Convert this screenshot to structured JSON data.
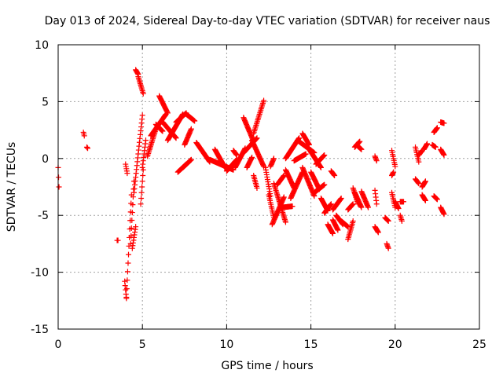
{
  "chart_data": {
    "type": "scatter",
    "title": "Day 013 of 2024, Sidereal Day-to-day VTEC variation (SDTVAR) for receiver naus",
    "xlabel": "GPS time / hours",
    "ylabel": "SDTVAR / TECUs",
    "xlim": [
      0,
      25
    ],
    "ylim": [
      -15,
      10
    ],
    "xticks": [
      "0",
      "5",
      "10",
      "15",
      "20",
      "25"
    ],
    "yticks": [
      "-15",
      "-10",
      "-5",
      "0",
      "5",
      "10"
    ],
    "grid": true,
    "marker": "+",
    "color": "#ff0000",
    "segments": [
      {
        "x0": 0.0,
        "x1": 0.05,
        "y": [
          -0.8,
          -2.5
        ]
      },
      {
        "x0": 1.5,
        "x1": 1.55,
        "y": [
          2.3,
          2.0
        ]
      },
      {
        "x0": 1.7,
        "x1": 1.75,
        "y": [
          1.0,
          0.9
        ]
      },
      {
        "x0": 3.5,
        "x1": 3.55,
        "y": [
          -7.2,
          -7.2
        ]
      },
      {
        "x0": 3.95,
        "x1": 4.05,
        "y": [
          -10.8,
          -12.3
        ]
      },
      {
        "x0": 4.0,
        "x1": 4.1,
        "y": [
          -0.5,
          -1.3
        ]
      },
      {
        "x0": 4.05,
        "x1": 4.35,
        "y": [
          -12.2,
          -3.2
        ]
      },
      {
        "x0": 4.3,
        "x1": 4.5,
        "y": [
          -7.5,
          -2.0
        ]
      },
      {
        "x0": 4.4,
        "x1": 4.6,
        "y": [
          -7.9,
          -6.0
        ]
      },
      {
        "x0": 4.5,
        "x1": 5.0,
        "y": [
          -3.0,
          3.8
        ]
      },
      {
        "x0": 4.6,
        "x1": 4.75,
        "y": [
          7.8,
          7.4
        ]
      },
      {
        "x0": 4.75,
        "x1": 5.05,
        "y": [
          7.2,
          5.7
        ]
      },
      {
        "x0": 4.9,
        "x1": 5.05,
        "y": [
          -4.0,
          -1.0
        ]
      },
      {
        "x0": 5.0,
        "x1": 5.2,
        "y": [
          -0.8,
          1.6
        ]
      },
      {
        "x0": 5.3,
        "x1": 5.8,
        "y": [
          0.2,
          2.6
        ]
      },
      {
        "x0": 5.5,
        "x1": 6.4,
        "y": [
          2.0,
          3.9
        ]
      },
      {
        "x0": 5.8,
        "x1": 6.2,
        "y": [
          3.0,
          2.4
        ]
      },
      {
        "x0": 6.0,
        "x1": 6.5,
        "y": [
          5.5,
          4.0
        ]
      },
      {
        "x0": 6.2,
        "x1": 7.0,
        "y": [
          3.2,
          1.8
        ]
      },
      {
        "x0": 6.5,
        "x1": 7.4,
        "y": [
          1.6,
          3.9
        ]
      },
      {
        "x0": 7.0,
        "x1": 7.6,
        "y": [
          3.2,
          4.0
        ]
      },
      {
        "x0": 7.1,
        "x1": 7.6,
        "y": [
          -1.2,
          -0.5
        ]
      },
      {
        "x0": 7.4,
        "x1": 7.9,
        "y": [
          -0.8,
          -0.1
        ]
      },
      {
        "x0": 7.5,
        "x1": 7.9,
        "y": [
          1.2,
          2.6
        ]
      },
      {
        "x0": 7.6,
        "x1": 8.1,
        "y": [
          3.9,
          3.3
        ]
      },
      {
        "x0": 8.2,
        "x1": 9.0,
        "y": [
          1.4,
          -0.3
        ]
      },
      {
        "x0": 9.0,
        "x1": 10.4,
        "y": [
          -0.1,
          -1.0
        ]
      },
      {
        "x0": 9.3,
        "x1": 9.9,
        "y": [
          0.8,
          -0.8
        ]
      },
      {
        "x0": 10.0,
        "x1": 10.6,
        "y": [
          -1.1,
          -0.1
        ]
      },
      {
        "x0": 10.4,
        "x1": 10.6,
        "y": [
          0.7,
          0.3
        ]
      },
      {
        "x0": 10.5,
        "x1": 11.1,
        "y": [
          -0.8,
          0.9
        ]
      },
      {
        "x0": 11.0,
        "x1": 11.8,
        "y": [
          0.5,
          1.8
        ]
      },
      {
        "x0": 11.0,
        "x1": 11.6,
        "y": [
          3.6,
          1.5
        ]
      },
      {
        "x0": 11.2,
        "x1": 11.5,
        "y": [
          -0.8,
          0.1
        ]
      },
      {
        "x0": 11.6,
        "x1": 11.8,
        "y": [
          -1.5,
          -2.6
        ]
      },
      {
        "x0": 11.6,
        "x1": 12.2,
        "y": [
          2.2,
          5.1
        ]
      },
      {
        "x0": 11.5,
        "x1": 12.2,
        "y": [
          1.6,
          -0.7
        ]
      },
      {
        "x0": 12.3,
        "x1": 12.6,
        "y": [
          -0.8,
          -3.3
        ]
      },
      {
        "x0": 12.5,
        "x1": 12.8,
        "y": [
          -3.2,
          -5.2
        ]
      },
      {
        "x0": 12.6,
        "x1": 12.8,
        "y": [
          -0.7,
          0.0
        ]
      },
      {
        "x0": 12.7,
        "x1": 13.4,
        "y": [
          -5.8,
          -3.4
        ]
      },
      {
        "x0": 12.8,
        "x1": 13.5,
        "y": [
          -2.2,
          -5.6
        ]
      },
      {
        "x0": 13.0,
        "x1": 13.4,
        "y": [
          -2.3,
          -1.5
        ]
      },
      {
        "x0": 13.3,
        "x1": 13.9,
        "y": [
          -4.3,
          -4.2
        ]
      },
      {
        "x0": 13.5,
        "x1": 14.0,
        "y": [
          -1.0,
          -2.6
        ]
      },
      {
        "x0": 13.5,
        "x1": 14.3,
        "y": [
          0.0,
          1.8
        ]
      },
      {
        "x0": 13.8,
        "x1": 14.5,
        "y": [
          -3.5,
          -1.2
        ]
      },
      {
        "x0": 14.0,
        "x1": 14.7,
        "y": [
          -0.2,
          0.4
        ]
      },
      {
        "x0": 14.2,
        "x1": 15.2,
        "y": [
          1.6,
          0.5
        ]
      },
      {
        "x0": 14.5,
        "x1": 15.2,
        "y": [
          -0.8,
          -3.3
        ]
      },
      {
        "x0": 14.5,
        "x1": 14.9,
        "y": [
          2.2,
          1.2
        ]
      },
      {
        "x0": 14.9,
        "x1": 15.6,
        "y": [
          0.8,
          -0.8
        ]
      },
      {
        "x0": 15.0,
        "x1": 15.5,
        "y": [
          -1.2,
          -2.7
        ]
      },
      {
        "x0": 15.3,
        "x1": 15.8,
        "y": [
          -0.5,
          0.3
        ]
      },
      {
        "x0": 15.2,
        "x1": 15.8,
        "y": [
          -3.0,
          -2.3
        ]
      },
      {
        "x0": 15.6,
        "x1": 16.0,
        "y": [
          -3.5,
          -4.6
        ]
      },
      {
        "x0": 15.8,
        "x1": 16.2,
        "y": [
          -4.8,
          -4.0
        ]
      },
      {
        "x0": 16.0,
        "x1": 16.3,
        "y": [
          -5.8,
          -6.6
        ]
      },
      {
        "x0": 16.2,
        "x1": 16.4,
        "y": [
          -1.1,
          -1.5
        ]
      },
      {
        "x0": 16.3,
        "x1": 16.8,
        "y": [
          -4.5,
          -3.5
        ]
      },
      {
        "x0": 16.3,
        "x1": 16.6,
        "y": [
          -5.4,
          -6.3
        ]
      },
      {
        "x0": 16.5,
        "x1": 16.9,
        "y": [
          -5.0,
          -5.8
        ]
      },
      {
        "x0": 16.8,
        "x1": 17.2,
        "y": [
          -5.5,
          -6.0
        ]
      },
      {
        "x0": 17.2,
        "x1": 17.5,
        "y": [
          -7.1,
          -5.5
        ]
      },
      {
        "x0": 17.2,
        "x1": 17.5,
        "y": [
          -4.5,
          -4.0
        ]
      },
      {
        "x0": 17.5,
        "x1": 17.8,
        "y": [
          -2.6,
          -4.0
        ]
      },
      {
        "x0": 17.6,
        "x1": 18.0,
        "y": [
          -3.0,
          -4.3
        ]
      },
      {
        "x0": 17.6,
        "x1": 17.9,
        "y": [
          1.0,
          1.5
        ]
      },
      {
        "x0": 17.7,
        "x1": 18.0,
        "y": [
          1.2,
          0.8
        ]
      },
      {
        "x0": 18.0,
        "x1": 18.4,
        "y": [
          -2.9,
          -4.3
        ]
      },
      {
        "x0": 18.8,
        "x1": 18.9,
        "y": [
          0.2,
          -0.2
        ]
      },
      {
        "x0": 18.8,
        "x1": 18.9,
        "y": [
          -2.8,
          -4.0
        ]
      },
      {
        "x0": 18.8,
        "x1": 19.0,
        "y": [
          -6.0,
          -6.5
        ]
      },
      {
        "x0": 19.4,
        "x1": 19.6,
        "y": [
          -5.2,
          -5.5
        ]
      },
      {
        "x0": 19.5,
        "x1": 19.6,
        "y": [
          -7.5,
          -7.9
        ]
      },
      {
        "x0": 19.8,
        "x1": 20.0,
        "y": [
          -3.0,
          -4.3
        ]
      },
      {
        "x0": 19.8,
        "x1": 19.9,
        "y": [
          -1.5,
          -1.2
        ]
      },
      {
        "x0": 19.8,
        "x1": 20.0,
        "y": [
          0.7,
          -0.7
        ]
      },
      {
        "x0": 20.0,
        "x1": 20.2,
        "y": [
          -3.8,
          -4.4
        ]
      },
      {
        "x0": 20.3,
        "x1": 20.5,
        "y": [
          -3.8,
          -3.8
        ]
      },
      {
        "x0": 20.3,
        "x1": 20.4,
        "y": [
          -5.0,
          -5.5
        ]
      },
      {
        "x0": 21.2,
        "x1": 21.4,
        "y": [
          1.0,
          -0.3
        ]
      },
      {
        "x0": 21.2,
        "x1": 21.4,
        "y": [
          -1.8,
          -2.2
        ]
      },
      {
        "x0": 21.4,
        "x1": 21.6,
        "y": [
          0.3,
          0.7
        ]
      },
      {
        "x0": 21.6,
        "x1": 21.8,
        "y": [
          -2.5,
          -2.0
        ]
      },
      {
        "x0": 21.6,
        "x1": 21.8,
        "y": [
          -3.2,
          -3.7
        ]
      },
      {
        "x0": 21.7,
        "x1": 21.9,
        "y": [
          0.8,
          1.3
        ]
      },
      {
        "x0": 22.2,
        "x1": 22.4,
        "y": [
          1.2,
          1.0
        ]
      },
      {
        "x0": 22.3,
        "x1": 22.5,
        "y": [
          2.3,
          2.7
        ]
      },
      {
        "x0": 22.3,
        "x1": 22.5,
        "y": [
          -3.3,
          -3.6
        ]
      },
      {
        "x0": 22.7,
        "x1": 22.9,
        "y": [
          3.2,
          3.1
        ]
      },
      {
        "x0": 22.7,
        "x1": 22.9,
        "y": [
          0.8,
          0.3
        ]
      },
      {
        "x0": 22.7,
        "x1": 22.9,
        "y": [
          -4.3,
          -4.9
        ]
      }
    ]
  }
}
